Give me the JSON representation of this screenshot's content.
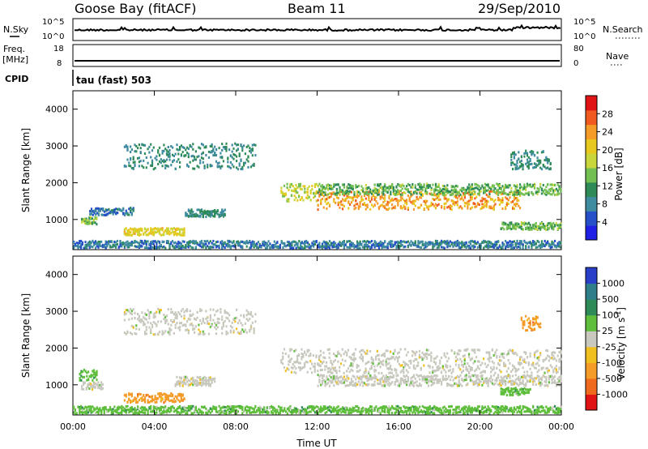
{
  "header": {
    "station": "Goose Bay (fitACF)",
    "beam": "Beam 11",
    "date": "29/Sep/2010"
  },
  "side_labels": {
    "nsky": "N.Sky",
    "nsearch": "N.Search",
    "freq": "Freq.",
    "freq_unit": "[MHz]",
    "nave": "Nave",
    "cpid": "CPID",
    "cpid_value": "tau (fast) 503"
  },
  "strip_ticks": {
    "noise_left": [
      "10^5",
      "10^0"
    ],
    "noise_right": [
      "10^5",
      "10^0"
    ],
    "freq": [
      "18",
      "8"
    ],
    "nave": [
      "80",
      "0"
    ]
  },
  "chart_data": [
    {
      "type": "heatmap",
      "panel": "power",
      "ylabel": "Slant Range [km]",
      "xlabel": "",
      "xlim": [
        0,
        24
      ],
      "ylim": [
        180,
        4500
      ],
      "yticks": [
        "1000",
        "2000",
        "3000",
        "4000"
      ],
      "colorbar_label": "Power [dB]",
      "colorbar_ticks": [
        "4",
        "8",
        "12",
        "16",
        "20",
        "24",
        "28"
      ],
      "colorbar_colors": [
        "#1f1fe6",
        "#2650c8",
        "#3f8ca0",
        "#2e8b57",
        "#73bf52",
        "#c8d63c",
        "#e6c81e",
        "#f59b28",
        "#f05a1e",
        "#e01414"
      ],
      "regions": [
        {
          "x": [
            0.4,
            1.2
          ],
          "y": [
            900,
            1100
          ],
          "level": 12
        },
        {
          "x": [
            0.8,
            3.0
          ],
          "y": [
            1150,
            1350
          ],
          "level": 6
        },
        {
          "x": [
            2.5,
            5.5
          ],
          "y": [
            600,
            800
          ],
          "level": 18
        },
        {
          "x": [
            5.5,
            7.5
          ],
          "y": [
            1100,
            1300
          ],
          "level": 8
        },
        {
          "x": [
            2.5,
            9.0
          ],
          "y": [
            2400,
            3100
          ],
          "level": 8
        },
        {
          "x": [
            10.2,
            12.0
          ],
          "y": [
            1500,
            2000
          ],
          "level": 16
        },
        {
          "x": [
            12.0,
            22.0
          ],
          "y": [
            1300,
            1800
          ],
          "level": 22
        },
        {
          "x": [
            12.0,
            24.0
          ],
          "y": [
            1700,
            2000
          ],
          "level": 12
        },
        {
          "x": [
            21.0,
            24.0
          ],
          "y": [
            750,
            950
          ],
          "level": 12
        },
        {
          "x": [
            21.5,
            23.5
          ],
          "y": [
            2400,
            2900
          ],
          "level": 8
        },
        {
          "x": [
            0.0,
            24.0
          ],
          "y": [
            250,
            450
          ],
          "level": 6
        }
      ]
    },
    {
      "type": "heatmap",
      "panel": "velocity",
      "ylabel": "Slant Range [km]",
      "xlabel": "Time UT",
      "xlim": [
        0,
        24
      ],
      "ylim": [
        180,
        4500
      ],
      "xticks": [
        "00:00",
        "04:00",
        "08:00",
        "12:00",
        "16:00",
        "20:00",
        "00:00"
      ],
      "yticks": [
        "1000",
        "2000",
        "3000",
        "4000"
      ],
      "colorbar_label": "Velocity [m s^-1]",
      "colorbar_ticks": [
        "1000",
        "500",
        "100",
        "25",
        "-25",
        "-100",
        "-500",
        "-1000"
      ],
      "colorbar_colors": [
        "#2a3fc8",
        "#2f7f8a",
        "#2e8b57",
        "#5fbf3c",
        "#c8c8be",
        "#f0c020",
        "#f59b28",
        "#f06a1e",
        "#e01414"
      ],
      "regions": [
        {
          "x": [
            0.4,
            1.5
          ],
          "y": [
            900,
            1100
          ],
          "color_index": 4
        },
        {
          "x": [
            0.3,
            1.2
          ],
          "y": [
            1150,
            1450
          ],
          "color_index": 3
        },
        {
          "x": [
            2.5,
            5.5
          ],
          "y": [
            550,
            800
          ],
          "color_index": 6
        },
        {
          "x": [
            5.0,
            7.0
          ],
          "y": [
            1000,
            1250
          ],
          "color_index": 4
        },
        {
          "x": [
            2.5,
            9.0
          ],
          "y": [
            2400,
            3100
          ],
          "color_index": 4
        },
        {
          "x": [
            10.2,
            24.0
          ],
          "y": [
            1350,
            2000
          ],
          "color_index": 4
        },
        {
          "x": [
            12.0,
            24.0
          ],
          "y": [
            1000,
            1300
          ],
          "color_index": 4
        },
        {
          "x": [
            21.0,
            22.5
          ],
          "y": [
            750,
            950
          ],
          "color_index": 3
        },
        {
          "x": [
            22.0,
            23.0
          ],
          "y": [
            2500,
            2900
          ],
          "color_index": 6
        },
        {
          "x": [
            0.0,
            24.0
          ],
          "y": [
            250,
            450
          ],
          "color_index": 3
        }
      ]
    }
  ]
}
